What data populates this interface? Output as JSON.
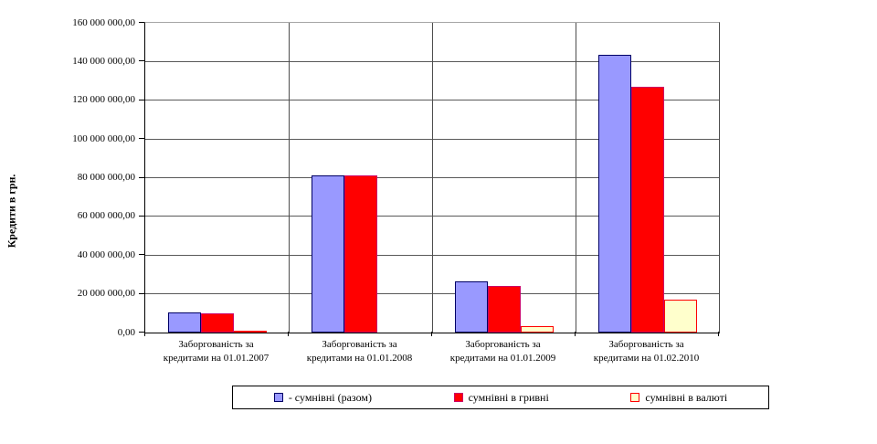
{
  "chart_data": {
    "type": "bar",
    "title": "",
    "xlabel": "",
    "ylabel": "Кредити в грн.",
    "ylim": [
      0,
      160000000
    ],
    "ytick_step": 20000000,
    "ytick_labels": [
      "0,00",
      "20 000 000,00",
      "40 000 000,00",
      "60 000 000,00",
      "80 000 000,00",
      "100 000 000,00",
      "120 000 000,00",
      "140 000 000,00",
      "160 000 000,00"
    ],
    "grid": true,
    "legend_position": "bottom",
    "categories": [
      {
        "label": "Заборгованість за кредитами на 01.01.2007",
        "lines": [
          "Заборгованість за",
          "кредитами на 01.01.2007"
        ]
      },
      {
        "label": "Заборгованість за кредитами на 01.01.2008",
        "lines": [
          "Заборгованість за",
          "кредитами на 01.01.2008"
        ]
      },
      {
        "label": "Заборгованість за кредитами на 01.01.2009",
        "lines": [
          "Заборгованість за",
          "кредитами на 01.01.2009"
        ]
      },
      {
        "label": "Заборгованість за кредитами на 01.02.2010",
        "lines": [
          "Заборгованість за",
          "кредитами на 01.02.2010"
        ]
      }
    ],
    "series": [
      {
        "name": "- сумнівні (разом)",
        "fill": "#9999FF",
        "border": "#000066",
        "values": [
          10400000,
          81300000,
          26500000,
          143300000
        ]
      },
      {
        "name": "сумнівні в гривні",
        "fill": "#FF0000",
        "border": "#CC0066",
        "values": [
          9900000,
          81300000,
          24200000,
          126800000
        ]
      },
      {
        "name": "сумнівні в валюті",
        "fill": "#FFFFCC",
        "border": "#FF0000",
        "values": [
          400000,
          0,
          3200000,
          16800000
        ]
      }
    ]
  }
}
